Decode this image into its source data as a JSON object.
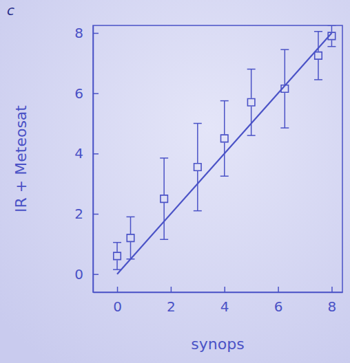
{
  "chart_data": {
    "type": "scatter",
    "panel_label": "c",
    "x_label": "synops",
    "y_label": "IR + Meteosat",
    "xlim": [
      -0.9,
      8.4
    ],
    "ylim": [
      -0.6,
      8.25
    ],
    "xticks": [
      0,
      2,
      4,
      6,
      8
    ],
    "yticks": [
      0,
      2,
      4,
      6,
      8
    ],
    "grid": false,
    "color": "#4a52c6",
    "series": [
      {
        "type": "scatter",
        "marker": "square",
        "x": [
          0,
          0.5,
          1.75,
          3,
          4,
          5,
          6.25,
          7.5,
          8
        ],
        "values": [
          0.6,
          1.2,
          2.5,
          3.55,
          4.5,
          5.7,
          6.15,
          7.25,
          7.9
        ],
        "errors": [
          0.45,
          0.7,
          1.35,
          1.45,
          1.25,
          1.1,
          1.3,
          0.8,
          0.35
        ]
      },
      {
        "type": "line",
        "line_style": "solid",
        "x": [
          0,
          8
        ],
        "values": [
          0,
          8
        ]
      }
    ]
  }
}
